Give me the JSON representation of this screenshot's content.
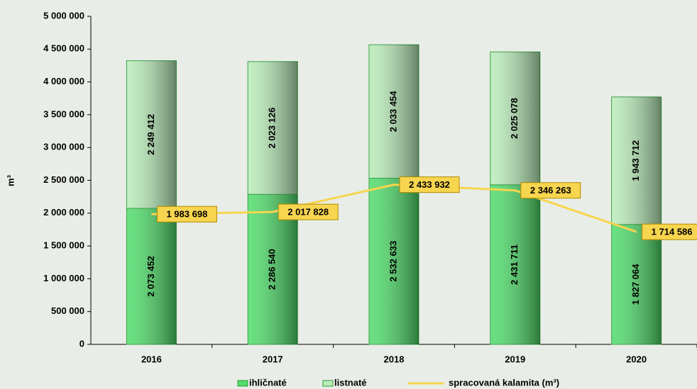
{
  "chart_data": {
    "type": "bar",
    "ylabel": "m³",
    "categories": [
      "2016",
      "2017",
      "2018",
      "2019",
      "2020"
    ],
    "series": [
      {
        "name": "ihličnaté",
        "type": "bar",
        "color": "#4fdc6a",
        "values": [
          2073452,
          2286540,
          2532633,
          2431711,
          1827064
        ],
        "value_labels": [
          "2 073 452",
          "2 286 540",
          "2 532 633",
          "2 431 711",
          "1 827 064"
        ]
      },
      {
        "name": "listnaté",
        "type": "bar",
        "color": "#b9ecb9",
        "values": [
          2249412,
          2023126,
          2033454,
          2025078,
          1943712
        ],
        "value_labels": [
          "2 249 412",
          "2 023 126",
          "2 033 454",
          "2 025 078",
          "1 943 712"
        ]
      },
      {
        "name": "spracovaná kalamita (m³)",
        "type": "line",
        "color": "#f7d54e",
        "values": [
          1983698,
          2017828,
          2433932,
          2346263,
          1714586
        ],
        "value_labels": [
          "1 983 698",
          "2 017 828",
          "2 433 932",
          "2 346 263",
          "1 714 586"
        ]
      }
    ],
    "ylim": [
      0,
      5000000
    ],
    "yticks": [
      {
        "value": 0,
        "label": "0"
      },
      {
        "value": 500000,
        "label": "500 000"
      },
      {
        "value": 1000000,
        "label": "1 000 000"
      },
      {
        "value": 1500000,
        "label": "1 500 000"
      },
      {
        "value": 2000000,
        "label": "2 000 000"
      },
      {
        "value": 2500000,
        "label": "2 500 000"
      },
      {
        "value": 3000000,
        "label": "3 000 000"
      },
      {
        "value": 3500000,
        "label": "3 500 000"
      },
      {
        "value": 4000000,
        "label": "4 000 000"
      },
      {
        "value": 4500000,
        "label": "4 500 000"
      },
      {
        "value": 5000000,
        "label": "5 000 000"
      }
    ],
    "grid": false
  }
}
